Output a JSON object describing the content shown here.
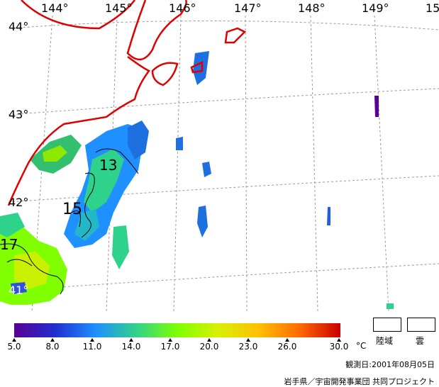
{
  "map": {
    "longitude_labels": [
      "144°",
      "145°",
      "146°",
      "147°",
      "148°",
      "149°",
      "15"
    ],
    "latitude_labels": [
      "44°",
      "43°",
      "42°",
      "41°"
    ],
    "contour_labels": [
      "13",
      "15",
      "17"
    ],
    "colors": {
      "coastline": "#e00000",
      "grid": "#999999",
      "contour": "#000000"
    }
  },
  "colorbar": {
    "ticks": [
      "5.0",
      "8.0",
      "11.0",
      "14.0",
      "17.0",
      "20.0",
      "23.0",
      "26.0",
      "30.0"
    ],
    "unit": "°C",
    "gradient_colors": [
      "#5a0096",
      "#1f2fcf",
      "#1e90ff",
      "#2fd28a",
      "#7fff00",
      "#d8f000",
      "#ffc000",
      "#ff6a00",
      "#c80000"
    ]
  },
  "legend": {
    "land_label": "陸域",
    "cloud_label": "雲"
  },
  "footer": {
    "observation_date": "観測日:2001年08月05日",
    "credit": "岩手県／宇宙開発事業団 共同プロジェクト"
  }
}
